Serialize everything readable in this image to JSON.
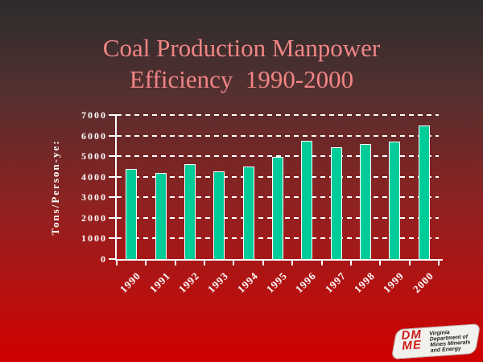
{
  "slide": {
    "title_line1": "Coal Production Manpower",
    "title_line2": "Efficiency  1990-2000"
  },
  "chart_data": {
    "type": "bar",
    "title": "Coal Production Manpower Efficiency 1990-2000",
    "categories": [
      "1990",
      "1991",
      "1992",
      "1993",
      "1994",
      "1995",
      "1996",
      "1997",
      "1998",
      "1999",
      "2000"
    ],
    "values": [
      4400,
      4200,
      4600,
      4250,
      4500,
      4950,
      5750,
      5450,
      5600,
      5700,
      6500
    ],
    "xlabel": "",
    "ylabel": "Tons/Person-ye:",
    "ylim": [
      0,
      7000
    ],
    "yticks": [
      0,
      1000,
      2000,
      3000,
      4000,
      5000,
      6000,
      7000
    ],
    "grid": "horizontal-dashed-white",
    "legend": "none",
    "bar_color": "#00cc99"
  },
  "logo": {
    "acronym_top": "DM",
    "acronym_bottom": "ME",
    "lines": [
      "Virginia",
      "Department of",
      "Mines Minerals",
      "and Energy"
    ]
  },
  "colors": {
    "background_top": "#2e2c2c",
    "background_bottom": "#cc0000",
    "title_text": "#f08585",
    "axis_text": "#ffffff",
    "bar_fill": "#00cc99",
    "bar_border": "#ffffff",
    "gridline": "#ffffff",
    "logo_red": "#cc1a1a"
  }
}
